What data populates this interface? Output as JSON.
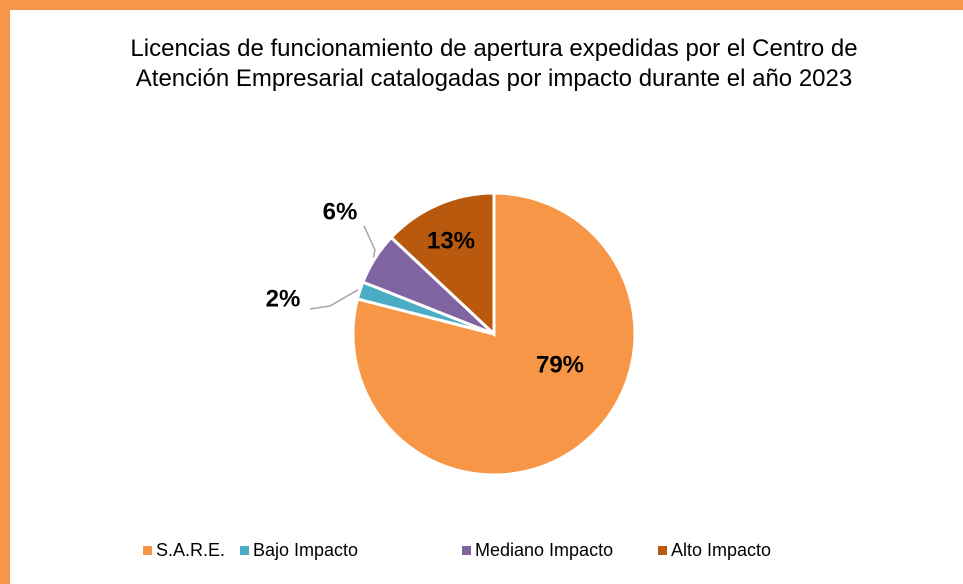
{
  "chart_data": {
    "type": "pie",
    "title": "Licencias de funcionamiento de apertura expedidas por el Centro de Atención Empresarial catalogadas por impacto durante el año 2023",
    "categories": [
      "S.A.R.E.",
      "Bajo Impacto",
      "Mediano Impacto",
      "Alto Impacto"
    ],
    "values": [
      79,
      2,
      6,
      13
    ],
    "value_labels": [
      "79%",
      "2%",
      "6%",
      "13%"
    ],
    "colors": [
      "#f79646",
      "#4bacc6",
      "#8064a2",
      "#b8590d"
    ],
    "legend": "bottom"
  }
}
